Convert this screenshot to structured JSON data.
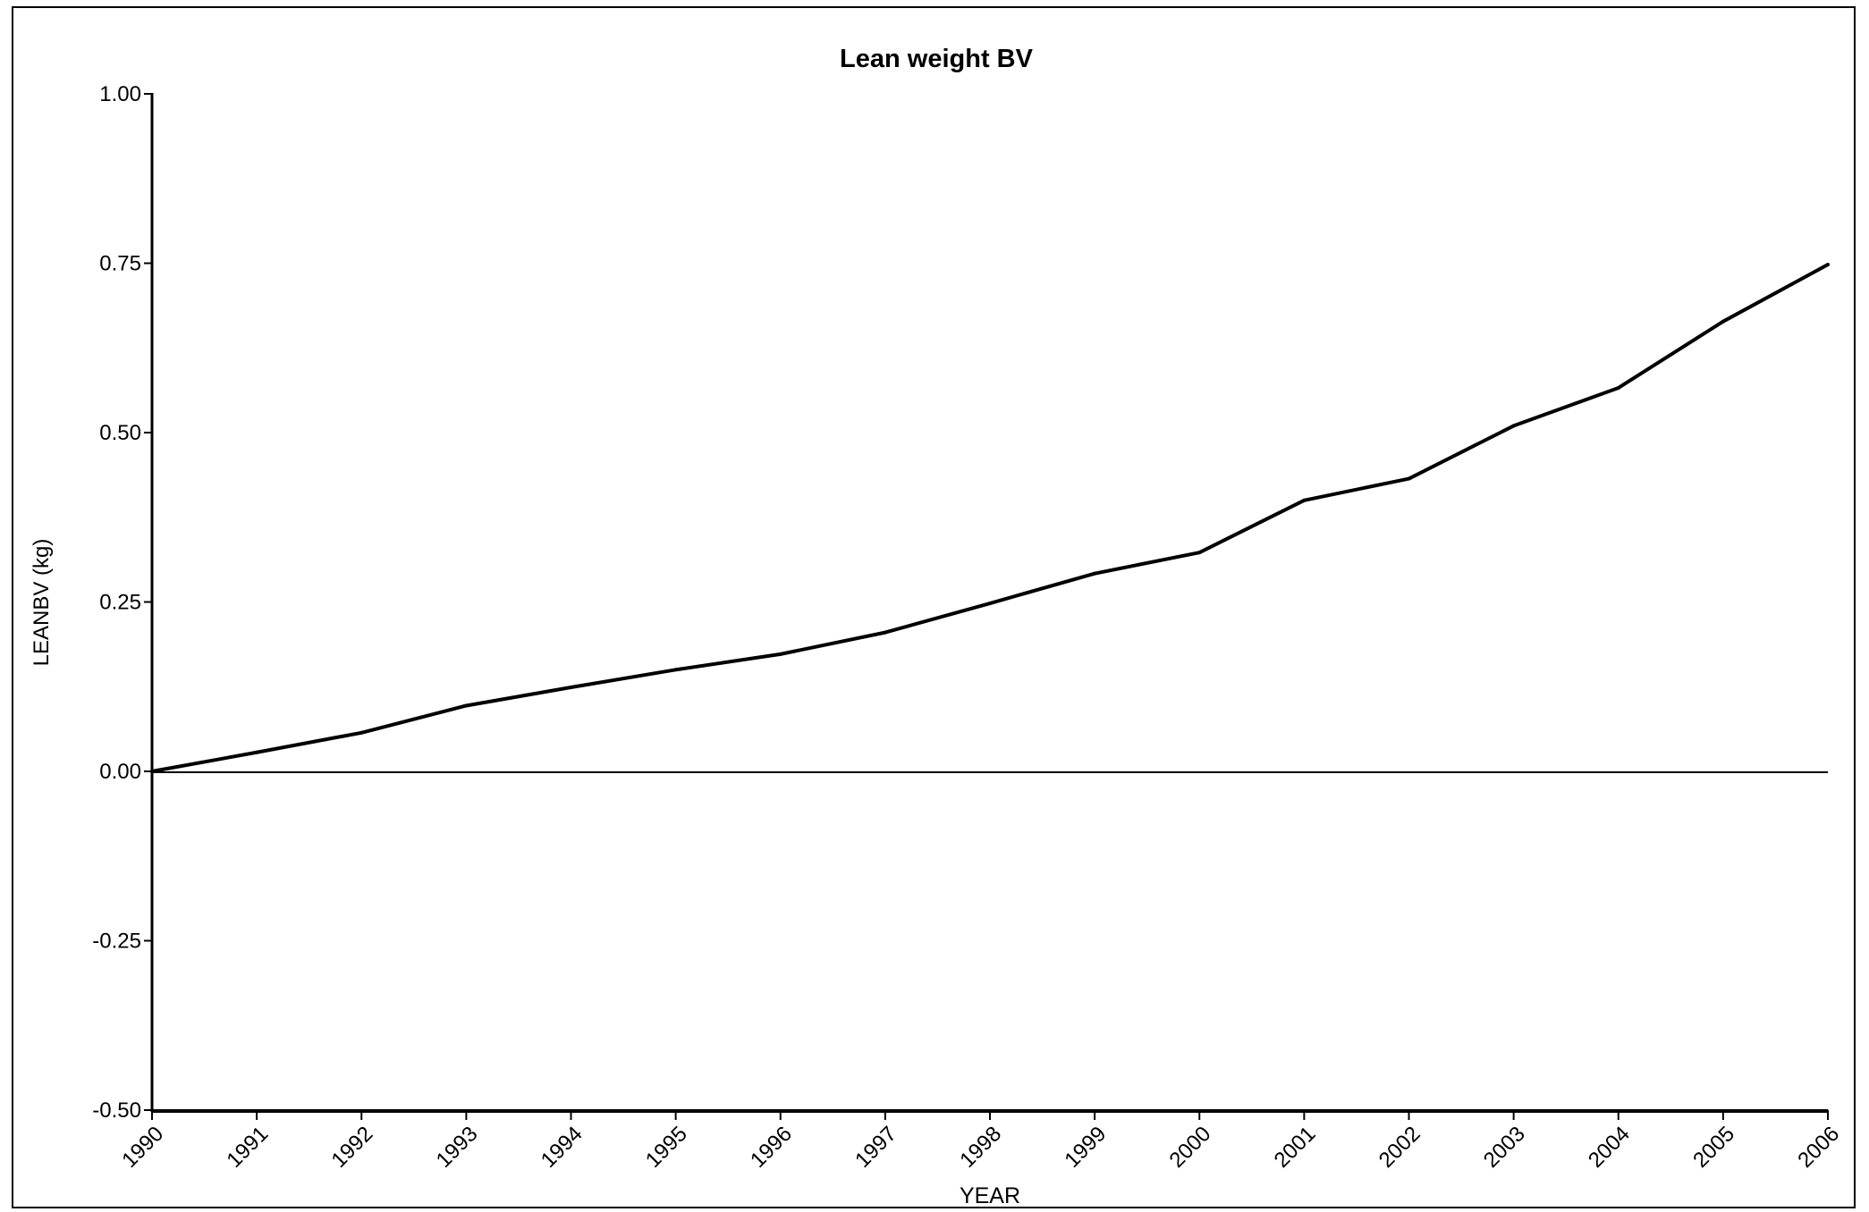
{
  "chart_data": {
    "type": "line",
    "title": "Lean weight BV",
    "xlabel": "YEAR",
    "ylabel": "LEANBV (kg)",
    "x": [
      1990,
      1991,
      1992,
      1993,
      1994,
      1995,
      1996,
      1997,
      1998,
      1999,
      2000,
      2001,
      2002,
      2003,
      2004,
      2005,
      2006
    ],
    "x_tick_labels": [
      "1990",
      "1991",
      "1992",
      "1993",
      "1994",
      "1995",
      "1996",
      "1997",
      "1998",
      "1999",
      "2000",
      "2001",
      "2002",
      "2003",
      "2004",
      "2005",
      "2006"
    ],
    "series": [
      {
        "values": [
          0.0,
          0.028,
          0.057,
          0.097,
          0.124,
          0.15,
          0.173,
          0.205,
          0.248,
          0.292,
          0.323,
          0.4,
          0.432,
          0.51,
          0.566,
          0.664,
          0.748
        ]
      }
    ],
    "ylim": [
      -0.5,
      1.0
    ],
    "y_ticks": [
      -0.5,
      -0.25,
      0.0,
      0.25,
      0.5,
      0.75,
      1.0
    ],
    "y_tick_labels": [
      "-0.50",
      "-0.25",
      "0.00",
      "0.25",
      "0.50",
      "0.75",
      "1.00"
    ],
    "xlim": [
      1990,
      2006
    ],
    "zero_line": true,
    "grid": false,
    "legend": "none",
    "line_color": "#000000"
  }
}
